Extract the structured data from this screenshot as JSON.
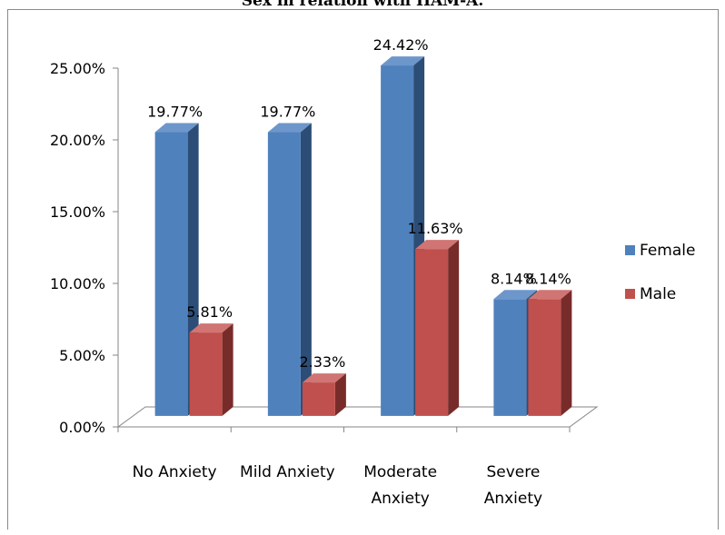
{
  "chart_data": {
    "type": "bar",
    "title": "Sex in relation with HAM-A.",
    "categories": [
      [
        "No Anxiety"
      ],
      [
        "Mild Anxiety"
      ],
      [
        "Moderate",
        "Anxiety"
      ],
      [
        "Severe",
        "Anxiety"
      ]
    ],
    "series": [
      {
        "name": "Female",
        "values": [
          19.77,
          19.77,
          24.42,
          8.14
        ],
        "labels": [
          "19.77%",
          "19.77%",
          "24.42%",
          "8.14%"
        ]
      },
      {
        "name": "Male",
        "values": [
          5.81,
          2.33,
          11.63,
          8.14
        ],
        "labels": [
          "5.81%",
          "2.33%",
          "11.63%",
          "8.14%"
        ]
      }
    ],
    "yticks": [
      "0.00%",
      "5.00%",
      "10.00%",
      "15.00%",
      "20.00%",
      "25.00%"
    ],
    "ylim": [
      0,
      25
    ],
    "grid": false,
    "legend_position": "right",
    "colors": {
      "female": "#4f81bd",
      "female_side": "#2c4d75",
      "female_top": "#6d96cb",
      "male": "#c0504d",
      "male_side": "#772c2a",
      "male_top": "#d07573",
      "floor": "#ffffff",
      "axis": "#868686"
    }
  }
}
